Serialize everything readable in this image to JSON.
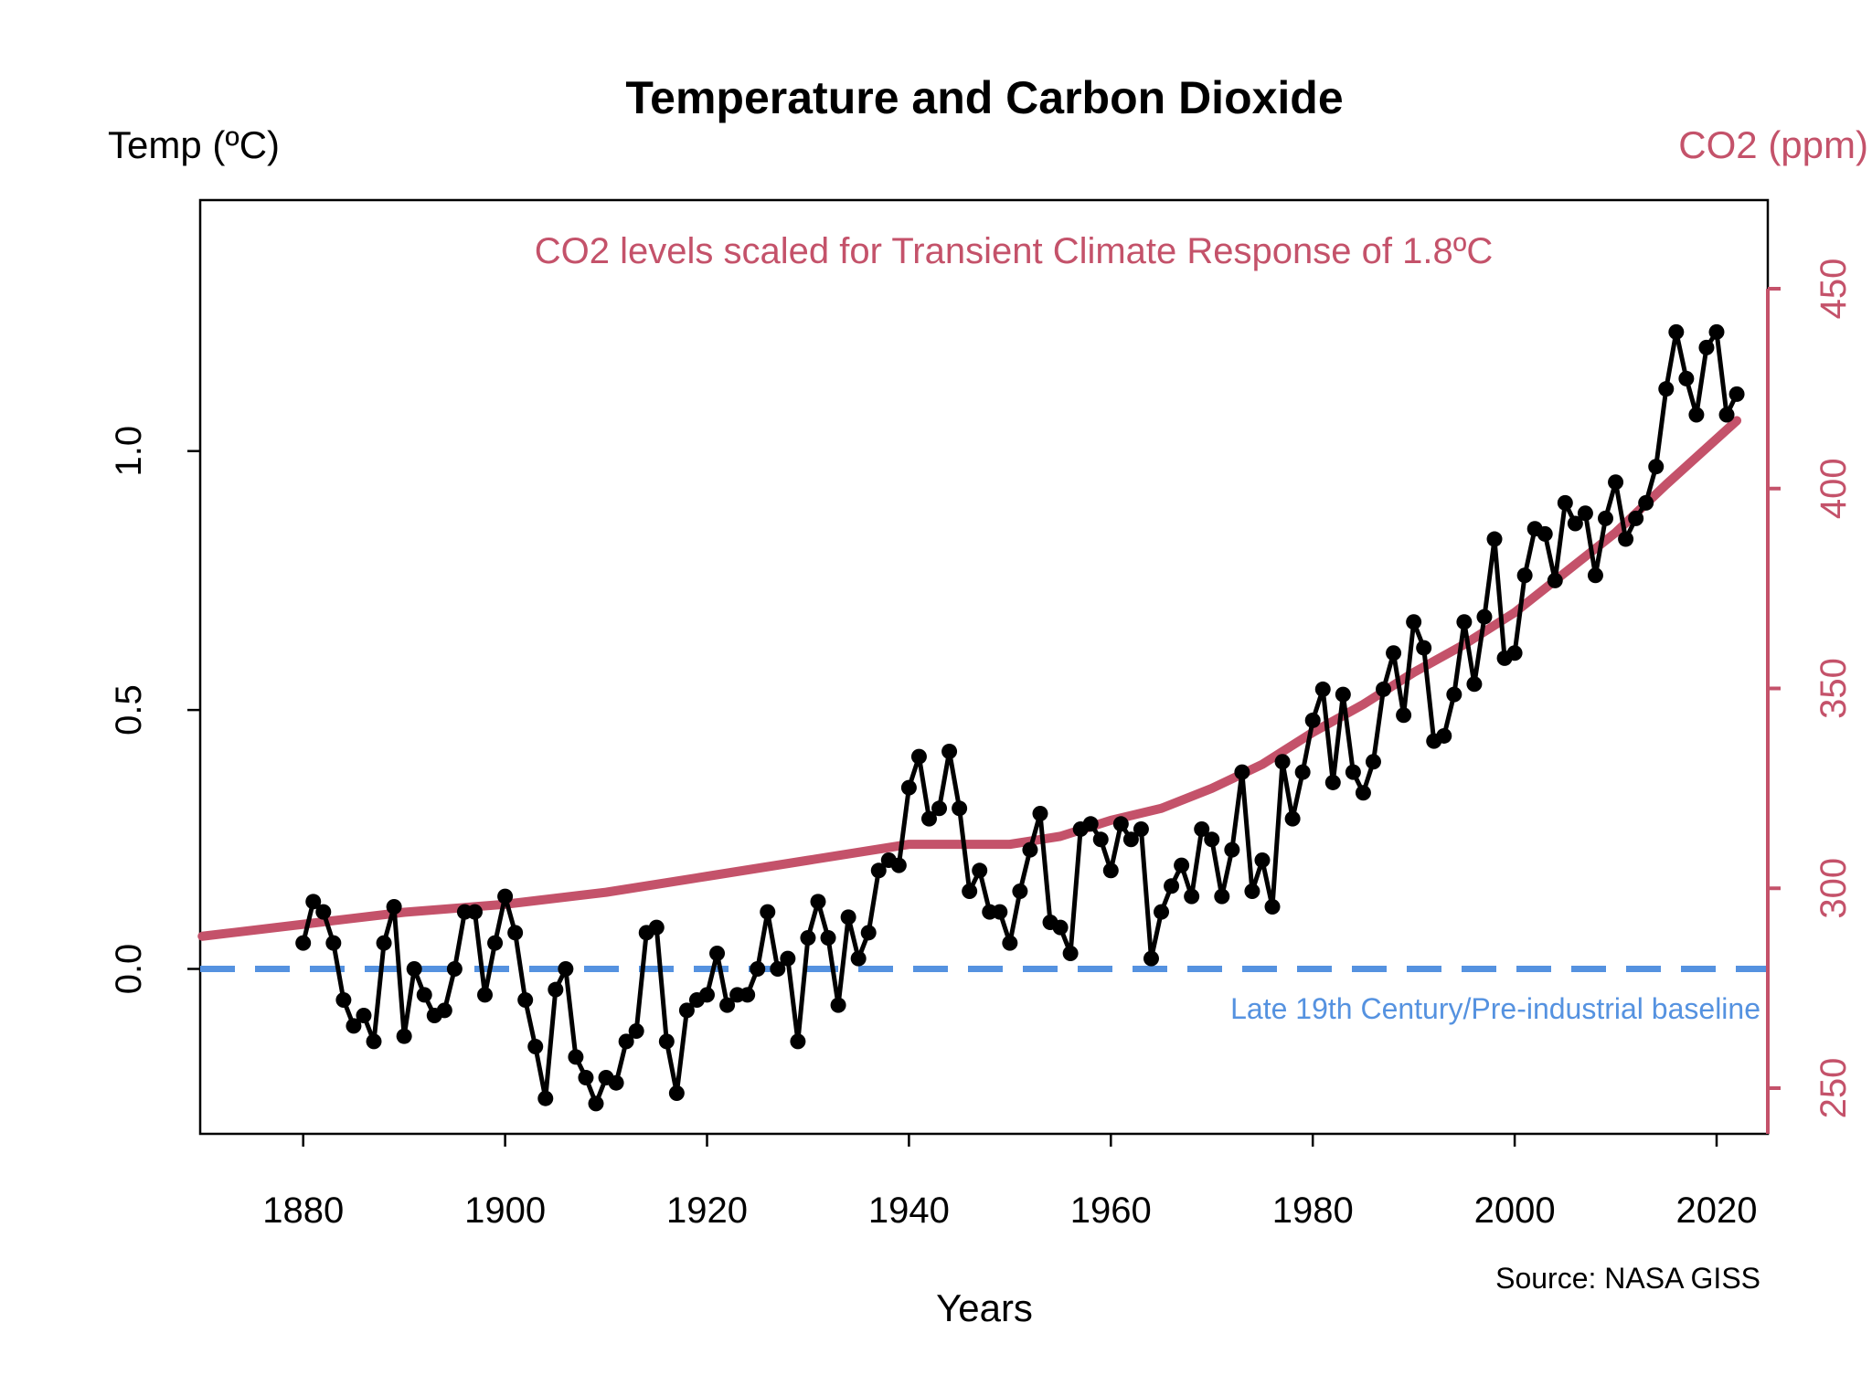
{
  "chart_data": {
    "type": "line",
    "title": "Temperature and Carbon Dioxide",
    "xlabel": "Years",
    "ylabel_left": "Temp (ºC)",
    "ylabel_right": "CO2 (ppm)",
    "annotation": "CO2 levels scaled for Transient Climate Response of 1.8ºC",
    "baseline_label": "Late 19th Century/Pre-industrial baseline",
    "source": "Source: NASA GISS",
    "xlim": [
      1870,
      2024
    ],
    "ylim_left": [
      -0.32,
      1.46
    ],
    "ylim_right": [
      240,
      470
    ],
    "x_ticks": [
      "1880",
      "1900",
      "1920",
      "1940",
      "1960",
      "1980",
      "2000",
      "2020"
    ],
    "y_ticks_left": [
      "0.0",
      "0.5",
      "1.0"
    ],
    "y_ticks_right": [
      "250",
      "300",
      "350",
      "400",
      "450"
    ],
    "baseline_value": 0.0,
    "grid": false,
    "colors": {
      "temperature": "#000000",
      "co2": "#C4526A",
      "baseline": "#5592E0",
      "axis_right": "#C4526A"
    },
    "temperature": {
      "start_year": 1880,
      "values": [
        0.05,
        0.13,
        0.11,
        0.05,
        -0.06,
        -0.11,
        -0.09,
        -0.14,
        0.05,
        0.12,
        -0.13,
        0.0,
        -0.05,
        -0.09,
        -0.08,
        0.0,
        0.11,
        0.11,
        -0.05,
        0.05,
        0.14,
        0.07,
        -0.06,
        -0.15,
        -0.25,
        -0.04,
        0.0,
        -0.17,
        -0.21,
        -0.26,
        -0.21,
        -0.22,
        -0.14,
        -0.12,
        0.07,
        0.08,
        -0.14,
        -0.24,
        -0.08,
        -0.06,
        -0.05,
        0.03,
        -0.07,
        -0.05,
        -0.05,
        0.0,
        0.11,
        0.0,
        0.02,
        -0.14,
        0.06,
        0.13,
        0.06,
        -0.07,
        0.1,
        0.02,
        0.07,
        0.19,
        0.21,
        0.2,
        0.35,
        0.41,
        0.29,
        0.31,
        0.42,
        0.31,
        0.15,
        0.19,
        0.11,
        0.11,
        0.05,
        0.15,
        0.23,
        0.3,
        0.09,
        0.08,
        0.03,
        0.27,
        0.28,
        0.25,
        0.19,
        0.28,
        0.25,
        0.27,
        0.02,
        0.11,
        0.16,
        0.2,
        0.14,
        0.27,
        0.25,
        0.14,
        0.23,
        0.38,
        0.15,
        0.21,
        0.12,
        0.4,
        0.29,
        0.38,
        0.48,
        0.54,
        0.36,
        0.53,
        0.38,
        0.34,
        0.4,
        0.54,
        0.61,
        0.49,
        0.67,
        0.62,
        0.44,
        0.45,
        0.53,
        0.67,
        0.55,
        0.68,
        0.83,
        0.6,
        0.61,
        0.76,
        0.85,
        0.84,
        0.75,
        0.9,
        0.86,
        0.88,
        0.76,
        0.87,
        0.94,
        0.83,
        0.87,
        0.9,
        0.97,
        1.12,
        1.23,
        1.14,
        1.07,
        1.2,
        1.23,
        1.07,
        1.11
      ]
    },
    "co2": {
      "years": [
        1870,
        1880,
        1890,
        1900,
        1910,
        1920,
        1930,
        1940,
        1945,
        1950,
        1955,
        1960,
        1965,
        1970,
        1975,
        1980,
        1985,
        1990,
        1995,
        2000,
        2005,
        2010,
        2015,
        2022
      ],
      "ppm": [
        288,
        291,
        294,
        296,
        299,
        303,
        307,
        311,
        311,
        311,
        313,
        317,
        320,
        325,
        331,
        339,
        346,
        354,
        361,
        369,
        379,
        389,
        401,
        417
      ]
    }
  }
}
